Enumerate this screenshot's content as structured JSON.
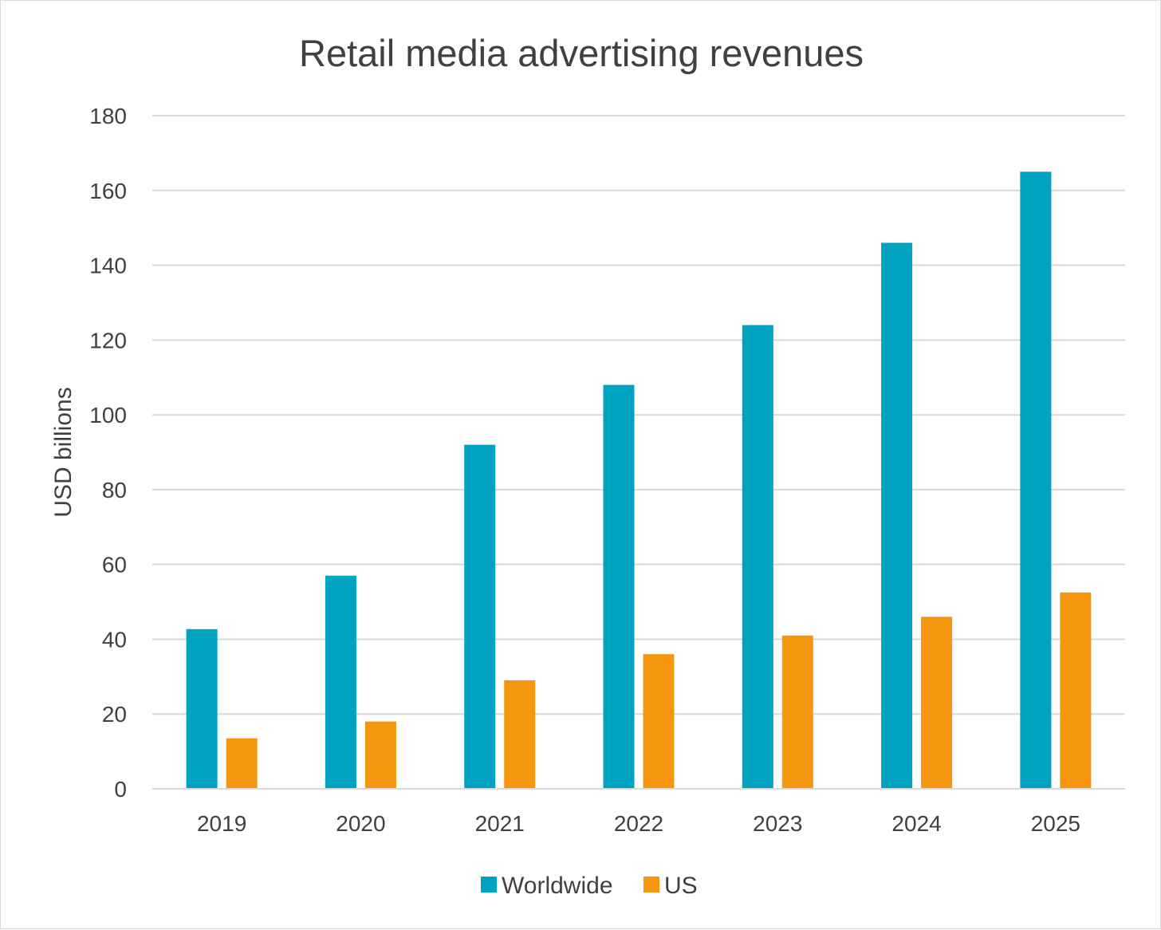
{
  "chart_data": {
    "type": "bar",
    "title": "Retail media advertising revenues",
    "xlabel": "",
    "ylabel": "USD billions",
    "categories": [
      "2019",
      "2020",
      "2021",
      "2022",
      "2023",
      "2024",
      "2025"
    ],
    "series": [
      {
        "name": "Worldwide",
        "color": "#00A3BF",
        "values": [
          42.7,
          57,
          92,
          108,
          124,
          146,
          165
        ]
      },
      {
        "name": "US",
        "color": "#F5960F",
        "values": [
          13.5,
          18,
          29,
          36,
          41,
          46,
          52.5
        ]
      }
    ],
    "ylim": [
      0,
      180
    ],
    "yticks": [
      "0",
      "20",
      "40",
      "60",
      "80",
      "100",
      "120",
      "140",
      "160",
      "180"
    ],
    "grid": true,
    "legend_position": "bottom"
  }
}
